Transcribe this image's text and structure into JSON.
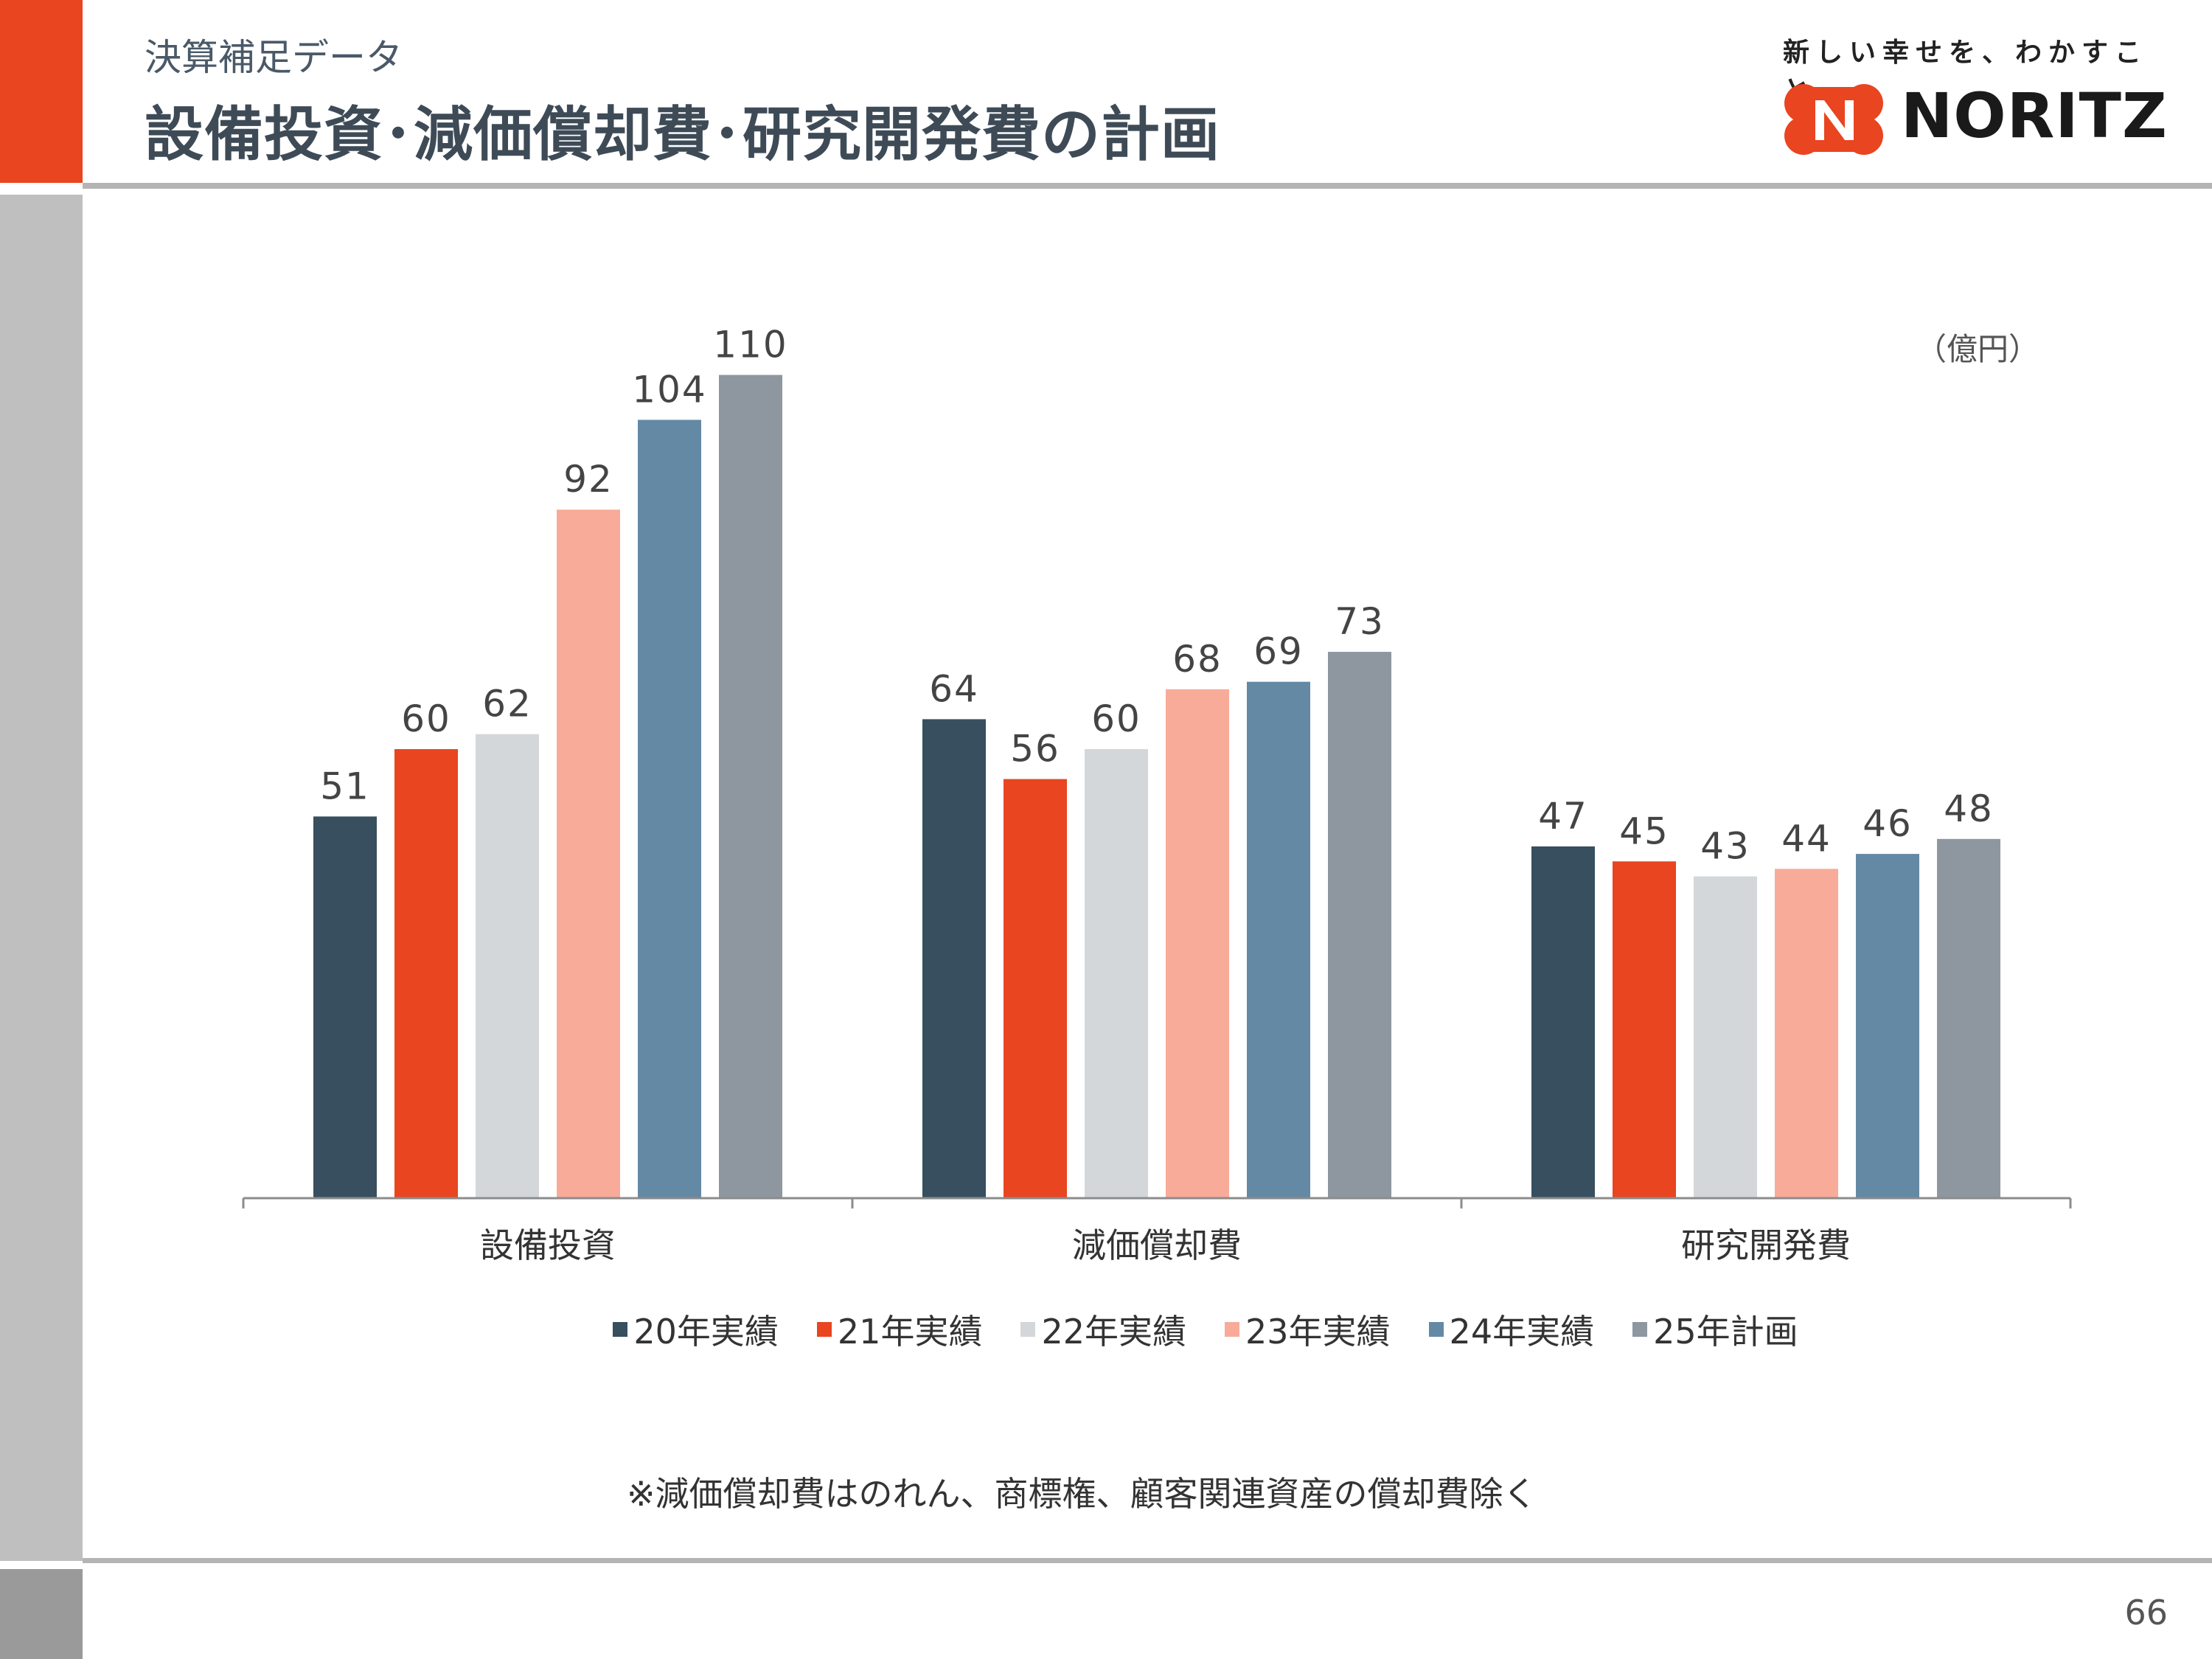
{
  "header": {
    "subtitle": "決算補足データ",
    "title": "設備投資･減価償却費･研究開発費の計画",
    "tagline": "新しい幸せを、わかすこと。",
    "logo_text": "NORITZ"
  },
  "colors": {
    "accent": "#e84520",
    "series": [
      "#374f5f",
      "#e84520",
      "#d3d7da",
      "#f8ab99",
      "#6489a5",
      "#8e979f"
    ]
  },
  "chart_data": {
    "type": "bar",
    "unit_label": "（億円）",
    "categories": [
      "設備投資",
      "減価償却費",
      "研究開発費"
    ],
    "series": [
      {
        "name": "20年実績",
        "values": [
          51,
          64,
          47
        ]
      },
      {
        "name": "21年実績",
        "values": [
          60,
          56,
          45
        ]
      },
      {
        "name": "22年実績",
        "values": [
          62,
          60,
          43
        ]
      },
      {
        "name": "23年実績",
        "values": [
          92,
          68,
          44
        ]
      },
      {
        "name": "24年実績",
        "values": [
          104,
          69,
          46
        ]
      },
      {
        "name": "25年計画",
        "values": [
          110,
          73,
          48
        ]
      }
    ],
    "ylim": [
      0,
      120
    ],
    "grid": false,
    "legend_position": "bottom"
  },
  "footnote": "※減価償却費はのれん、商標権、顧客関連資産の償却費除く",
  "page_number": "66"
}
